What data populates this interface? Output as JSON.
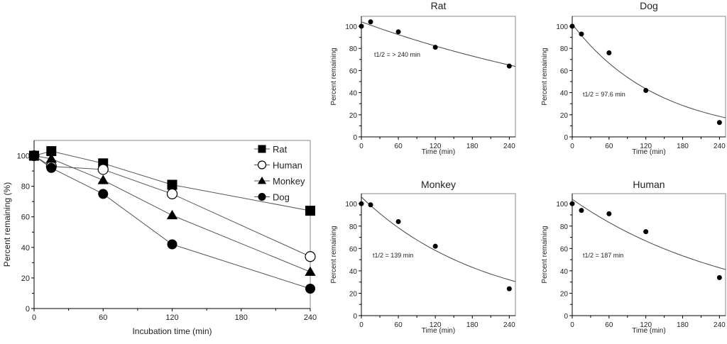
{
  "chart_data": [
    {
      "type": "line",
      "title": "",
      "xlabel": "Incubation time (min)",
      "ylabel": "Percent remaining (%)",
      "xlim": [
        0,
        240
      ],
      "ylim": [
        0,
        110
      ],
      "xticks": [
        0,
        60,
        120,
        180,
        240
      ],
      "yticks": [
        0,
        20,
        40,
        60,
        80,
        100
      ],
      "grid": false,
      "legend": "top-right",
      "x": [
        0,
        15,
        60,
        120,
        240
      ],
      "series": [
        {
          "name": "Rat",
          "marker": "square-filled",
          "values": [
            100,
            103,
            95,
            81,
            64
          ]
        },
        {
          "name": "Human",
          "marker": "circle-open",
          "values": [
            100,
            93,
            91,
            75,
            34
          ]
        },
        {
          "name": "Monkey",
          "marker": "triangle-filled",
          "values": [
            100,
            98,
            84,
            61,
            24
          ]
        },
        {
          "name": "Dog",
          "marker": "circle-filled",
          "values": [
            100,
            92,
            75,
            42,
            13
          ]
        }
      ]
    },
    {
      "type": "scatter",
      "title": "Rat",
      "xlabel": "Time (min)",
      "ylabel": "Percent remaining",
      "xlim": [
        0,
        250
      ],
      "ylim": [
        0,
        109
      ],
      "xticks": [
        0,
        60,
        120,
        180,
        240
      ],
      "yticks": [
        0,
        20,
        40,
        60,
        80,
        100
      ],
      "x": [
        0,
        15,
        60,
        120,
        240
      ],
      "values": [
        100,
        104,
        95,
        81,
        64
      ],
      "fit": {
        "type": "exponential",
        "a": 104,
        "k": 0.00196
      },
      "annotation": "t1/2 = > 240 min"
    },
    {
      "type": "scatter",
      "title": "Dog",
      "xlabel": "Time (min)",
      "ylabel": "Percent remaining",
      "xlim": [
        0,
        250
      ],
      "ylim": [
        0,
        109
      ],
      "xticks": [
        0,
        60,
        120,
        180,
        240
      ],
      "yticks": [
        0,
        20,
        40,
        60,
        80,
        100
      ],
      "x": [
        0,
        15,
        60,
        120,
        240
      ],
      "values": [
        100,
        93,
        76,
        42,
        13
      ],
      "fit": {
        "type": "exponential",
        "a": 102,
        "k": 0.0071
      },
      "annotation": "t1/2 = 97.6 min"
    },
    {
      "type": "scatter",
      "title": "Monkey",
      "xlabel": "Time (min)",
      "ylabel": "Percent remaining",
      "xlim": [
        0,
        250
      ],
      "ylim": [
        0,
        109
      ],
      "xticks": [
        0,
        60,
        120,
        180,
        240
      ],
      "yticks": [
        0,
        20,
        40,
        60,
        80,
        100
      ],
      "x": [
        0,
        15,
        60,
        120,
        240
      ],
      "values": [
        100,
        99,
        84,
        62,
        24
      ],
      "fit": {
        "type": "exponential",
        "a": 106,
        "k": 0.00499
      },
      "annotation": "t1/2 = 139 min"
    },
    {
      "type": "scatter",
      "title": "Human",
      "xlabel": "Time (min)",
      "ylabel": "Percent remaining",
      "xlim": [
        0,
        250
      ],
      "ylim": [
        0,
        109
      ],
      "xticks": [
        0,
        60,
        120,
        180,
        240
      ],
      "yticks": [
        0,
        20,
        40,
        60,
        80,
        100
      ],
      "x": [
        0,
        15,
        60,
        120,
        240
      ],
      "values": [
        100,
        94,
        91,
        75,
        34
      ],
      "fit": {
        "type": "exponential",
        "a": 104,
        "k": 0.0037
      },
      "annotation": "t1/2 = 187 min"
    }
  ]
}
